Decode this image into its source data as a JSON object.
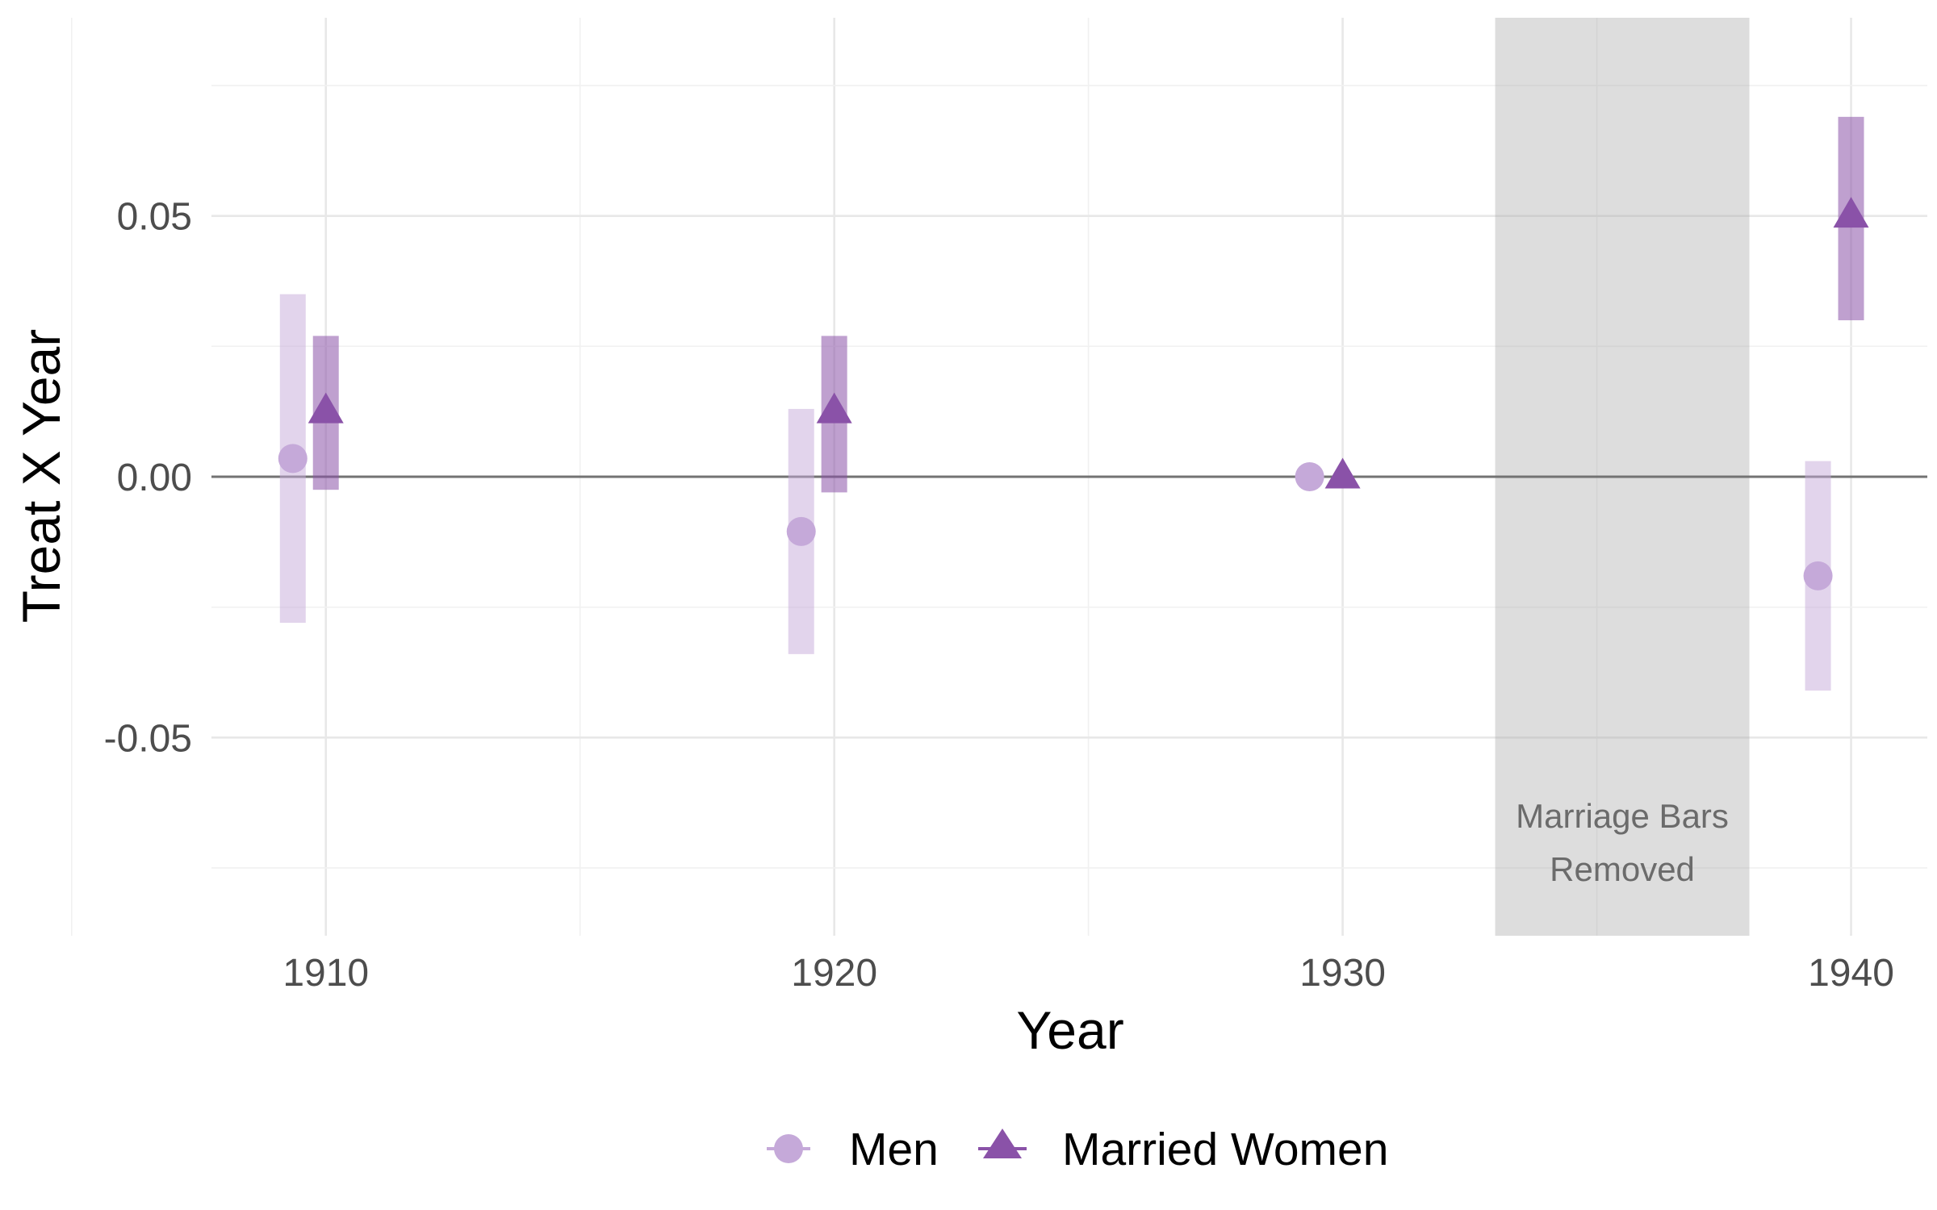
{
  "chart_data": {
    "type": "scatter",
    "title": "",
    "xlabel": "Year",
    "ylabel": "Treat X Year",
    "x_ticks": [
      1910,
      1920,
      1930,
      1940
    ],
    "x_tick_labels": [
      "1910",
      "1920",
      "1930",
      "1940"
    ],
    "y_ticks": [
      -0.05,
      0,
      0.05
    ],
    "y_tick_labels": [
      "-0.05",
      "0.00",
      "0.05"
    ],
    "xlim": [
      1907.75,
      1941.5
    ],
    "ylim": [
      -0.088,
      0.088
    ],
    "grid": true,
    "reference_line_y": 0,
    "shaded_region": {
      "x_start": 1933,
      "x_end": 1938,
      "label_lines": [
        "Marriage Bars",
        "Removed"
      ]
    },
    "series": [
      {
        "name": "Men",
        "marker": "circle",
        "color": "#c5a9d9",
        "points": [
          {
            "x": 1910,
            "y": 0.0035,
            "ci": [
              -0.028,
              0.035
            ]
          },
          {
            "x": 1920,
            "y": -0.0105,
            "ci": [
              -0.034,
              0.013
            ]
          },
          {
            "x": 1930,
            "y": 0.0,
            "ci": null
          },
          {
            "x": 1940,
            "y": -0.019,
            "ci": [
              -0.041,
              0.003
            ]
          }
        ]
      },
      {
        "name": "Married Women",
        "marker": "triangle",
        "color": "#8a52a8",
        "points": [
          {
            "x": 1910,
            "y": 0.0125,
            "ci": [
              -0.0025,
              0.027
            ]
          },
          {
            "x": 1920,
            "y": 0.0125,
            "ci": [
              -0.003,
              0.027
            ]
          },
          {
            "x": 1930,
            "y": 0.0,
            "ci": null
          },
          {
            "x": 1940,
            "y": 0.05,
            "ci": [
              0.03,
              0.069
            ]
          }
        ]
      }
    ],
    "legend_position": "bottom"
  }
}
